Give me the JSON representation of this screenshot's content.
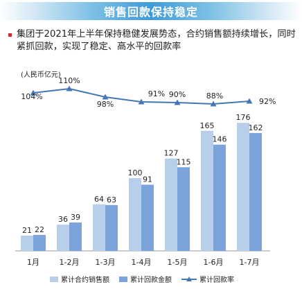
{
  "header": {
    "title": "销售回款保持稳定"
  },
  "summary": {
    "text": "集团于2021年上半年保持稳健发展势态，合约销售额持续增长，同时紧抓回款，实现了稳定、高水平的回款率"
  },
  "colors": {
    "sales": "#b7cfea",
    "collection": "#7ba4dc",
    "rate": "#4577b2",
    "title_bg": "#3f9bd8",
    "bullet": "#d02c2c"
  },
  "chart_data": {
    "type": "bar",
    "unit_label": "(人民币亿元)",
    "categories": [
      "1月",
      "1-2月",
      "1-3月",
      "1-4月",
      "1-5月",
      "1-6月",
      "1-7月"
    ],
    "series": [
      {
        "name": "累计合约销售额",
        "type": "bar",
        "values": [
          21,
          36,
          64,
          100,
          127,
          165,
          176
        ]
      },
      {
        "name": "累计回款金额",
        "type": "bar",
        "values": [
          22,
          39,
          63,
          91,
          115,
          146,
          162
        ]
      },
      {
        "name": "累计回款率",
        "type": "line",
        "values": [
          104,
          110,
          98,
          91,
          90,
          88,
          92
        ],
        "labels": [
          "104%",
          "110%",
          "98%",
          "91%",
          "90%",
          "88%",
          "92%"
        ]
      }
    ],
    "ylim": [
      0,
      180
    ],
    "legend_position": "bottom",
    "grid": false
  }
}
